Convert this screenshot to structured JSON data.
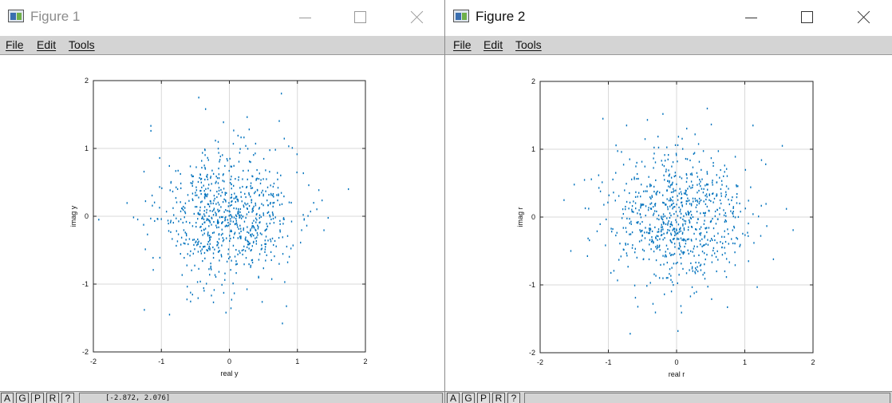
{
  "colors": {
    "marker": "#0072bd",
    "grid": "#d9d9d9",
    "inactive_title": "#8c8c8c"
  },
  "menu": [
    "File",
    "Edit",
    "Tools"
  ],
  "toolbar_buttons": [
    "A",
    "G",
    "P",
    "R",
    "?"
  ],
  "figures": [
    {
      "title": "Figure 1",
      "xlabel": "real y",
      "ylabel": "imag y",
      "status": "[-2.872, 2.076]",
      "x_ticks": [
        "-2",
        "-1",
        "0",
        "1",
        "2"
      ],
      "y_ticks": [
        "-2",
        "-1",
        "0",
        "1",
        "2"
      ]
    },
    {
      "title": "Figure 2",
      "xlabel": "real r",
      "ylabel": "imag r",
      "status": "",
      "x_ticks": [
        "-2",
        "-1",
        "0",
        "1",
        "2"
      ],
      "y_ticks": [
        "-2",
        "-1",
        "0",
        "1",
        "2"
      ]
    }
  ],
  "chart_data": [
    {
      "type": "scatter",
      "title": "",
      "xlabel": "real y",
      "ylabel": "imag y",
      "xlim": [
        -2,
        2
      ],
      "ylim": [
        -2,
        2
      ],
      "grid": true,
      "series": [
        {
          "distribution": "approx. bivariate normal, centre (0,0), std ~0.5",
          "count": 800,
          "seed": 11
        }
      ],
      "notable_points": [
        [
          -0.45,
          1.75
        ],
        [
          -0.35,
          1.58
        ],
        [
          -1.92,
          -0.05
        ],
        [
          1.75,
          0.4
        ],
        [
          0.78,
          -1.58
        ],
        [
          -0.88,
          -1.45
        ],
        [
          -1.25,
          -1.38
        ],
        [
          -0.05,
          -1.42
        ]
      ]
    },
    {
      "type": "scatter",
      "title": "",
      "xlabel": "real r",
      "ylabel": "imag r",
      "xlim": [
        -2,
        2
      ],
      "ylim": [
        -2,
        2
      ],
      "grid": true,
      "series": [
        {
          "distribution": "approx. bivariate normal, centre (0,0), std ~0.5",
          "count": 800,
          "seed": 29
        }
      ],
      "notable_points": [
        [
          -1.08,
          1.45
        ],
        [
          -0.2,
          1.52
        ],
        [
          0.45,
          1.6
        ],
        [
          1.12,
          1.35
        ],
        [
          1.55,
          1.05
        ],
        [
          -1.65,
          0.25
        ],
        [
          -0.68,
          -1.72
        ],
        [
          0.02,
          -1.68
        ],
        [
          -1.55,
          -0.5
        ]
      ]
    }
  ]
}
